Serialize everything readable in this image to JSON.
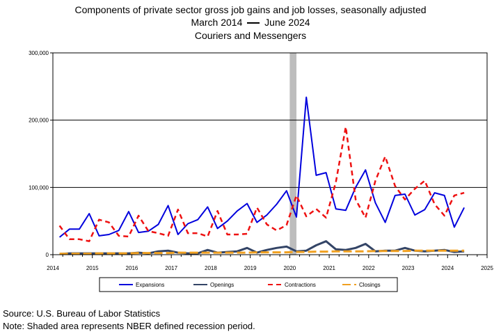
{
  "chart_data": {
    "type": "line",
    "title": "Components of private sector gross job gains and job losses, seasonally adjusted",
    "subtitle_prefix": "March 2014",
    "subtitle_suffix": "June 2024",
    "subtitle2": "Couriers and Messengers",
    "xlabel": "",
    "ylabel": "",
    "xlim": [
      2014,
      2025
    ],
    "ylim": [
      0,
      300000
    ],
    "x_ticks": [
      "2014",
      "2015",
      "2016",
      "2017",
      "2018",
      "2019",
      "2020",
      "2021",
      "2022",
      "2023",
      "2024",
      "2025"
    ],
    "y_ticks": [
      "0",
      "100,000",
      "200,000",
      "300,000"
    ],
    "grid": "horizontal",
    "recession_band": [
      2020.0,
      2020.17
    ],
    "legend_position": "bottom",
    "x": [
      2014.17,
      2014.42,
      2014.67,
      2014.92,
      2015.17,
      2015.42,
      2015.67,
      2015.92,
      2016.17,
      2016.42,
      2016.67,
      2016.92,
      2017.17,
      2017.42,
      2017.67,
      2017.92,
      2018.17,
      2018.42,
      2018.67,
      2018.92,
      2019.17,
      2019.42,
      2019.67,
      2019.92,
      2020.17,
      2020.42,
      2020.67,
      2020.92,
      2021.17,
      2021.42,
      2021.67,
      2021.92,
      2022.17,
      2022.42,
      2022.67,
      2022.92,
      2023.17,
      2023.42,
      2023.67,
      2023.92,
      2024.17,
      2024.42
    ],
    "series": [
      {
        "name": "Expansions",
        "color": "#0000dd",
        "dash": "solid",
        "width": 2,
        "values": [
          26000,
          38000,
          38000,
          61000,
          28000,
          30000,
          36000,
          64000,
          33000,
          35000,
          45000,
          73000,
          30000,
          46000,
          52000,
          71000,
          39000,
          50000,
          65000,
          76000,
          48000,
          59000,
          75000,
          95000,
          56000,
          234000,
          118000,
          122000,
          68000,
          66000,
          100000,
          126000,
          77000,
          48000,
          88000,
          90000,
          59000,
          67000,
          92000,
          88000,
          41000,
          70000
        ]
      },
      {
        "name": "Openings",
        "color": "#334466",
        "dash": "solid",
        "width": 3,
        "values": [
          1000,
          2000,
          2000,
          2000,
          2000,
          2000,
          2000,
          2000,
          3000,
          2000,
          5000,
          6000,
          3000,
          2000,
          2000,
          7000,
          3000,
          4000,
          5000,
          10000,
          3000,
          7000,
          10000,
          12000,
          5000,
          6000,
          14000,
          20000,
          8000,
          7000,
          10000,
          16000,
          5000,
          6000,
          6000,
          10000,
          6000,
          5000,
          6000,
          7000,
          4000,
          5000
        ]
      },
      {
        "name": "Contractions",
        "color": "#ee1111",
        "dash": "7,5",
        "width": 2.5,
        "values": [
          43000,
          23000,
          23000,
          20000,
          52000,
          48000,
          28000,
          27000,
          58000,
          35000,
          32000,
          28000,
          67000,
          32000,
          32000,
          27000,
          65000,
          30000,
          30000,
          31000,
          70000,
          45000,
          36000,
          44000,
          88000,
          57000,
          68000,
          55000,
          108000,
          190000,
          82000,
          55000,
          110000,
          146000,
          102000,
          82000,
          98000,
          110000,
          75000,
          58000,
          88000,
          92000
        ]
      },
      {
        "name": "Closings",
        "color": "#f0a020",
        "dash": "12,5",
        "width": 3,
        "values": [
          1500,
          1500,
          1500,
          1500,
          2000,
          2000,
          2000,
          2000,
          2500,
          2500,
          2500,
          2500,
          3000,
          3000,
          3000,
          3000,
          3000,
          3000,
          3000,
          3000,
          3500,
          3500,
          3500,
          3500,
          4000,
          4000,
          4500,
          4500,
          5000,
          5000,
          5000,
          5000,
          5500,
          5500,
          5500,
          5500,
          6000,
          6000,
          6000,
          6000,
          6000,
          6000
        ]
      }
    ]
  },
  "footer": {
    "source": "Source: U.S. Bureau of Labor Statistics",
    "note": "Note: Shaded area represents NBER defined recession period."
  }
}
